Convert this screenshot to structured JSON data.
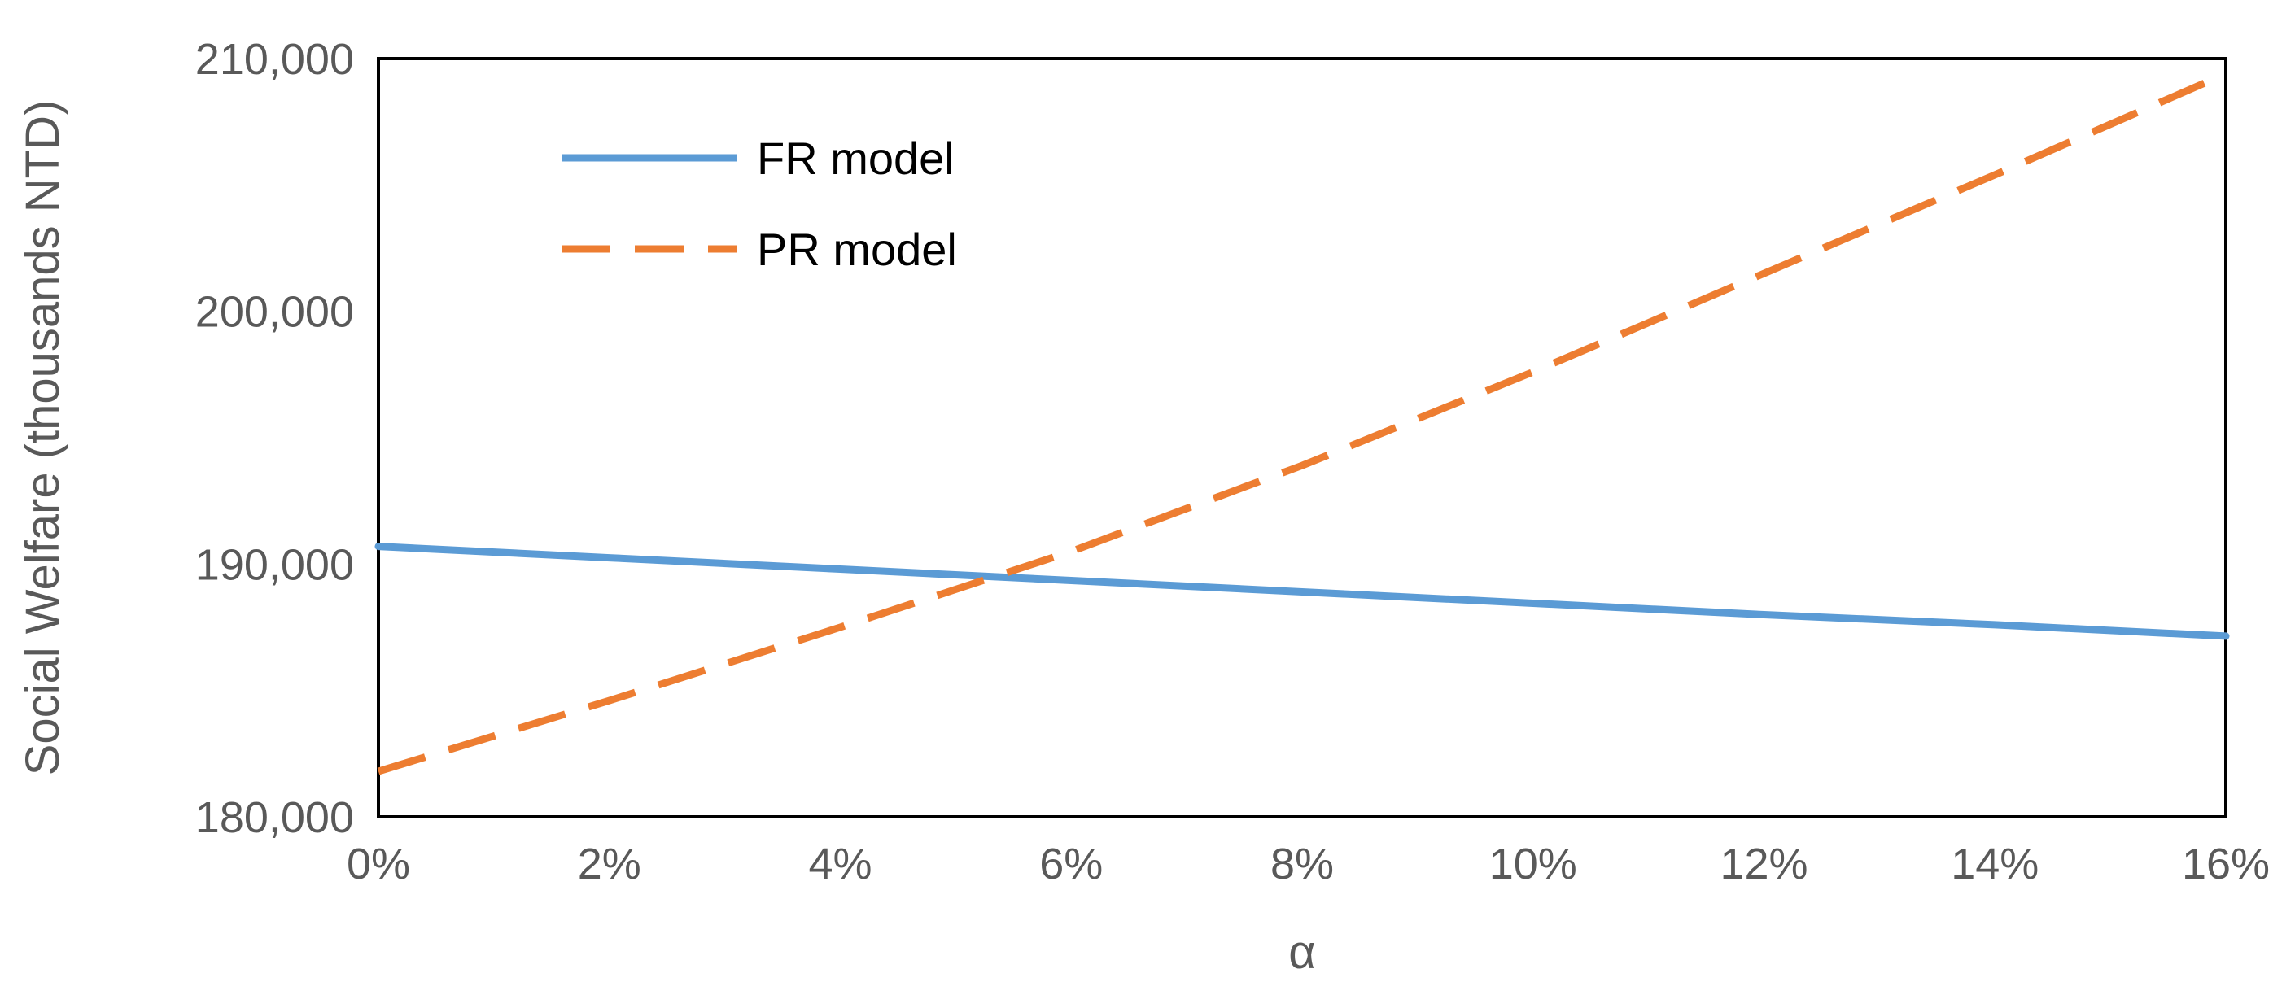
{
  "chart_data": {
    "type": "line",
    "title": "",
    "xlabel": "α",
    "ylabel": "Social Welfare (thousands NTD)",
    "x": [
      0,
      0.02,
      0.04,
      0.06,
      0.08,
      0.1,
      0.12,
      0.14,
      0.16
    ],
    "x_tick_labels": [
      "0%",
      "2%",
      "4%",
      "6%",
      "8%",
      "10%",
      "12%",
      "14%",
      "16%"
    ],
    "xlim": [
      0,
      0.16
    ],
    "ylim": [
      180000,
      210000
    ],
    "y_ticks": [
      180000,
      190000,
      200000,
      210000
    ],
    "y_tick_labels": [
      "180,000",
      "190,000",
      "200,000",
      "210,000"
    ],
    "grid": false,
    "legend_position": "top-left",
    "series": [
      {
        "name": "FR model",
        "color": "#5B9BD5",
        "style": "solid",
        "values": [
          190700,
          190250,
          189800,
          189350,
          188900,
          188450,
          188000,
          187600,
          187150
        ]
      },
      {
        "name": "PR model",
        "color": "#ED7D31",
        "style": "dashed",
        "values": [
          181800,
          184600,
          187500,
          190500,
          193900,
          197600,
          201500,
          205400,
          209400
        ]
      }
    ]
  }
}
